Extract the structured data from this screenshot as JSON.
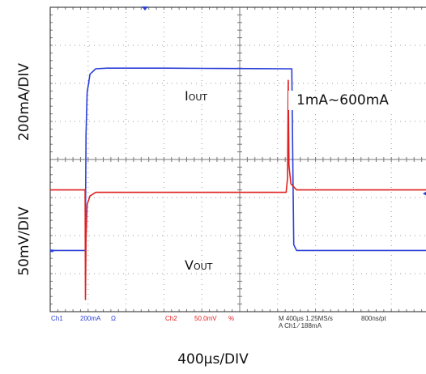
{
  "chart_data": {
    "type": "line",
    "title": "",
    "xlabel": "400µs/DIV",
    "grid": true,
    "x_divisions": 10,
    "y_divisions": 8,
    "x_unit": "µs",
    "x_range": [
      0,
      4000
    ],
    "series": [
      {
        "name": "IOUT",
        "axis_label": "200mA/DIV",
        "color": "#2b3fd6",
        "unit": "mA",
        "ylim": [
          -200,
          800
        ],
        "x": [
          0,
          370,
          378,
          390,
          420,
          480,
          600,
          1200,
          1800,
          2500,
          2550,
          2560,
          2570,
          2600,
          4000
        ],
        "y": [
          1,
          1,
          380,
          520,
          580,
          598,
          600,
          600,
          599,
          598,
          598,
          300,
          20,
          1,
          1
        ]
      },
      {
        "name": "VOUT",
        "axis_label": "50mV/DIV",
        "color": "#e02020",
        "unit": "mV",
        "ylim": [
          -100,
          150
        ],
        "x": [
          0,
          368,
          372,
          378,
          390,
          420,
          480,
          600,
          2490,
          2505,
          2512,
          2520,
          2540,
          2600,
          4000
        ],
        "y": [
          0,
          0,
          -90,
          -40,
          -12,
          -5,
          -2,
          -2,
          -2,
          10,
          90,
          20,
          5,
          0,
          0
        ]
      }
    ],
    "annotations": {
      "iout_text": "I",
      "iout_sub": "OUT",
      "range_text": "1mA~600mA",
      "vout_text": "V",
      "vout_sub": "OUT"
    }
  },
  "status": {
    "ch1": "Ch1",
    "ch1_scale": "200mA",
    "ch1_sym": "Ω",
    "ch2": "Ch2",
    "ch2_scale": "50.0mV",
    "ch2_sym": "%",
    "timebase": "M 400µs 1.25MS/s",
    "points": "800ns/pt",
    "trigger": "A Ch1 ⁄ 188mA"
  },
  "colors": {
    "grid": "#9a9a9a",
    "frame": "#222222"
  }
}
